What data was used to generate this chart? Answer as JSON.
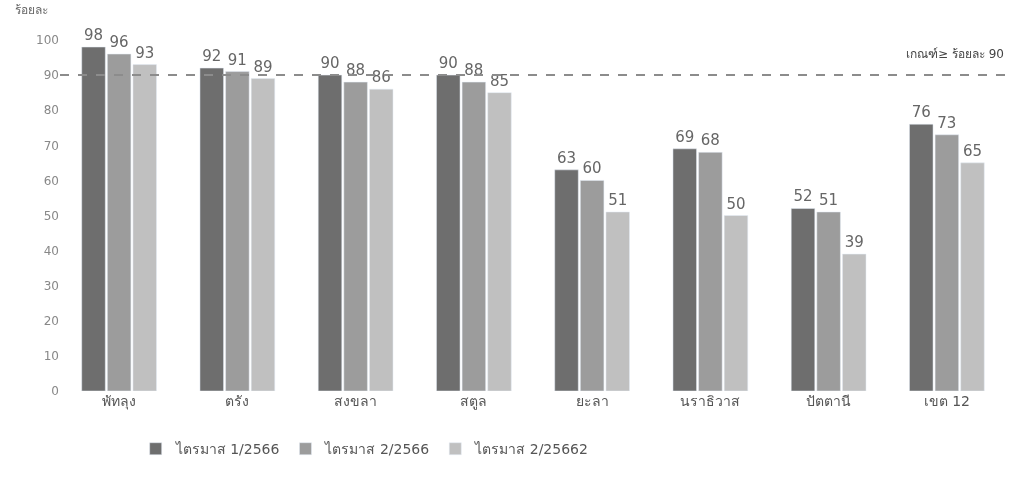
{
  "chart_data": {
    "type": "bar",
    "ylabel": "ร้อยละ",
    "categories": [
      "พัทลุง",
      "ตรัง",
      "สงขลา",
      "สตูล",
      "ยะลา",
      "นราธิวาส",
      "ปัตตานี",
      "เขต 12"
    ],
    "series": [
      {
        "name": "ไตรมาส 1/2566",
        "color": "#6e6e6e",
        "values": [
          98,
          92,
          90,
          90,
          63,
          69,
          52,
          76
        ]
      },
      {
        "name": "ไตรมาส 2/2566",
        "color": "#9c9c9c",
        "values": [
          96,
          91,
          88,
          88,
          60,
          68,
          51,
          73
        ]
      },
      {
        "name": "ไตรมาส 2/25662",
        "color": "#c0c0c0",
        "values": [
          93,
          89,
          86,
          85,
          51,
          50,
          39,
          65
        ]
      }
    ],
    "ylim": [
      0,
      100
    ],
    "yticks": [
      0,
      10,
      20,
      30,
      40,
      50,
      60,
      70,
      80,
      90,
      100
    ],
    "ref_lines": [
      {
        "axis": "y",
        "value": 90,
        "label": "เกณฑ์≥ ร้อยละ 90",
        "color": "#8c8c8c",
        "line_style": "dashed"
      }
    ],
    "data_labels": true,
    "legend": "bottom"
  }
}
